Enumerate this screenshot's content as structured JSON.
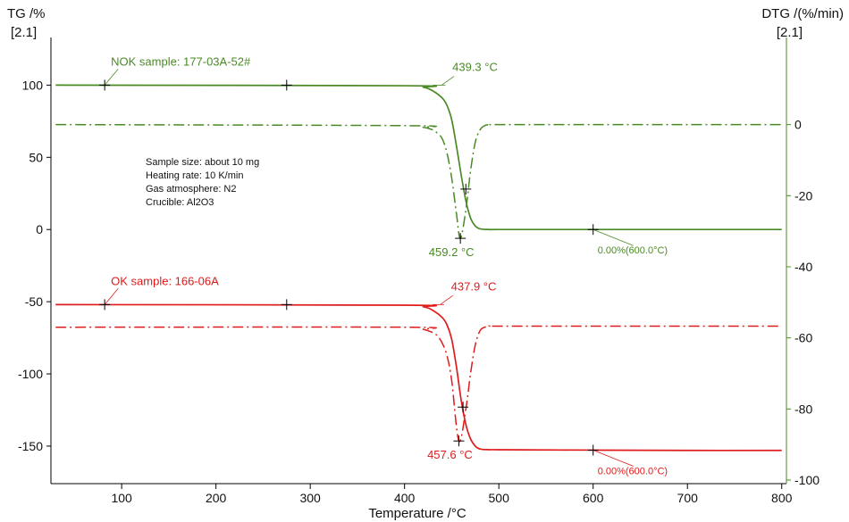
{
  "chart_data": {
    "type": "line",
    "xlabel": "Temperature /°C",
    "ylabel_left": "TG /%",
    "ylabel_left_sub": "[2.1]",
    "ylabel_right": "DTG /(%/min)",
    "ylabel_right_sub": "[2.1]",
    "xlim": [
      25,
      805
    ],
    "ylim_left": [
      -176,
      133
    ],
    "ylim_right": [
      -101,
      24.5
    ],
    "x_ticks": [
      100,
      200,
      300,
      400,
      500,
      600,
      700,
      800
    ],
    "y_ticks_left": [
      100,
      50,
      0,
      -50,
      -100,
      -150
    ],
    "y_ticks_right": [
      0,
      -20,
      -40,
      -60,
      -80,
      -100
    ],
    "grid": false,
    "info_lines": [
      "Sample size: about 10 mg",
      "Heating rate: 10 K/min",
      "Gas atmosphere: N2",
      "Crucible: Al2O3"
    ],
    "colors": {
      "green": "#4a8a24",
      "red": "#e01b1b",
      "axis_left": "#000000",
      "axis_right": "#4a8a24"
    },
    "series": [
      {
        "name": "NOK sample: 177-03A-52#",
        "color": "#4a8a24",
        "tg": {
          "x": [
            30,
            400,
            420,
            430,
            440,
            445,
            450,
            455,
            460,
            465,
            470,
            475,
            480,
            490,
            500,
            600,
            700,
            800
          ],
          "y": [
            100,
            99.6,
            98.5,
            96,
            91,
            86,
            76,
            58,
            38,
            20,
            8,
            2.5,
            0.5,
            0,
            0,
            0,
            0,
            0
          ]
        },
        "dtg": {
          "x": [
            30,
            400,
            420,
            430,
            435,
            440,
            445,
            450,
            455,
            459.2,
            465,
            470,
            475,
            480,
            485,
            490,
            500,
            600,
            700,
            800
          ],
          "y": [
            0,
            -0.3,
            -0.8,
            -1.5,
            -2.5,
            -4,
            -8,
            -15,
            -25,
            -32,
            -24,
            -13,
            -5,
            -1.5,
            -0.3,
            0,
            0,
            0,
            0,
            0
          ]
        },
        "label_anchor": [
          82,
          100
        ],
        "crosshairs_tg": [
          [
            82,
            100
          ],
          [
            275,
            100
          ],
          [
            465,
            28
          ],
          [
            600,
            0
          ]
        ],
        "crosshair_dtg": [
          459.2,
          -32
        ],
        "onset_label": "439.3 °C",
        "onset_anchor": [
          439.3,
          100
        ],
        "peak_label": "459.2 °C",
        "residue_label": "0.00%(600.0°C)"
      },
      {
        "name": "OK sample: 166-06A",
        "color": "#e01b1b",
        "tg": {
          "x": [
            30,
            400,
            420,
            430,
            440,
            445,
            450,
            455,
            460,
            465,
            470,
            475,
            480,
            490,
            500,
            600,
            700,
            800
          ],
          "y": [
            -52,
            -52.4,
            -53.5,
            -56,
            -61,
            -66,
            -76,
            -95,
            -118,
            -135,
            -145,
            -150,
            -152,
            -152.5,
            -152.5,
            -152.8,
            -153,
            -153
          ]
        },
        "dtg": {
          "x": [
            30,
            400,
            420,
            430,
            435,
            440,
            445,
            450,
            457.6,
            465,
            470,
            475,
            480,
            485,
            490,
            500,
            600,
            700,
            800
          ],
          "y": [
            -57,
            -57,
            -57.6,
            -58.5,
            -59.5,
            -61.5,
            -65,
            -72,
            -89,
            -80,
            -70,
            -62,
            -58,
            -57,
            -56.7,
            -56.7,
            -56.7,
            -56.7,
            -56.7
          ]
        },
        "label_anchor": [
          82,
          -52
        ],
        "crosshairs_tg": [
          [
            82,
            -52
          ],
          [
            275,
            -52
          ],
          [
            462,
            -123
          ],
          [
            600,
            -152.8
          ]
        ],
        "crosshair_dtg": [
          457.6,
          -89
        ],
        "onset_label": "437.9 °C",
        "onset_anchor": [
          437.9,
          -52
        ],
        "peak_label": "457.6 °C",
        "residue_label": "0.00%(600.0°C)"
      }
    ]
  }
}
